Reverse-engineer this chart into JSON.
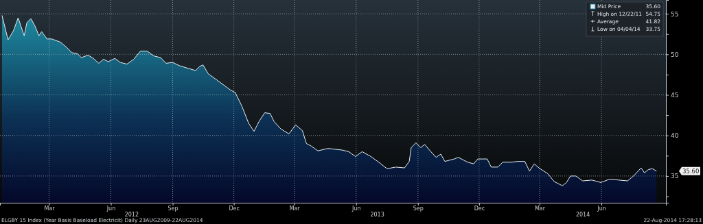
{
  "chart_data": {
    "type": "area",
    "xlim": [
      "2011-12-19",
      "2014-09-05"
    ],
    "ylim": [
      31.7,
      56.7
    ],
    "xticks": [
      {
        "value": "2012-03-01",
        "label": "Mar"
      },
      {
        "value": "2012-06-01",
        "label": "Jun"
      },
      {
        "value": "2012-09-01",
        "label": "Sep"
      },
      {
        "value": "2012-12-01",
        "label": "Dec"
      },
      {
        "value": "2013-03-01",
        "label": "Mar"
      },
      {
        "value": "2013-06-01",
        "label": "Jun"
      },
      {
        "value": "2013-09-01",
        "label": "Sep"
      },
      {
        "value": "2013-12-01",
        "label": "Dec"
      },
      {
        "value": "2014-03-01",
        "label": "Mar"
      },
      {
        "value": "2014-06-01",
        "label": "Jun"
      }
    ],
    "yticks": [
      {
        "value": 32.5,
        "label": null
      },
      35,
      {
        "value": 37.5,
        "label": null
      },
      40,
      {
        "value": 42.5,
        "label": null
      },
      45,
      {
        "value": 47.5,
        "label": null
      },
      50,
      {
        "value": 52.5,
        "label": null
      },
      55
    ],
    "grid": true,
    "legend": "top right",
    "x": [
      "2011-12-22",
      "2011-12-31",
      "2012-01-08",
      "2012-01-15",
      "2012-01-24",
      "2012-01-28",
      "2012-02-03",
      "2012-02-09",
      "2012-02-15",
      "2012-02-19",
      "2012-02-27",
      "2012-03-05",
      "2012-03-18",
      "2012-03-28",
      "2012-04-04",
      "2012-04-12",
      "2012-04-18",
      "2012-04-28",
      "2012-05-06",
      "2012-05-14",
      "2012-05-21",
      "2012-05-28",
      "2012-06-07",
      "2012-06-15",
      "2012-06-25",
      "2012-07-05",
      "2012-07-15",
      "2012-07-25",
      "2012-08-04",
      "2012-08-14",
      "2012-08-22",
      "2012-09-01",
      "2012-09-11",
      "2012-09-23",
      "2012-10-05",
      "2012-10-11",
      "2012-10-16",
      "2012-10-24",
      "2012-11-03",
      "2012-11-13",
      "2012-11-26",
      "2012-12-03",
      "2012-12-13",
      "2012-12-23",
      "2012-12-31",
      "2013-01-08",
      "2013-01-16",
      "2013-01-24",
      "2013-01-30",
      "2013-02-09",
      "2013-02-21",
      "2013-03-03",
      "2013-03-13",
      "2013-03-19",
      "2013-03-26",
      "2013-04-05",
      "2013-04-20",
      "2013-04-30",
      "2013-05-11",
      "2013-05-21",
      "2013-05-31",
      "2013-06-10",
      "2013-06-23",
      "2013-07-03",
      "2013-07-17",
      "2013-07-30",
      "2013-08-12",
      "2013-08-19",
      "2013-08-22",
      "2013-08-29",
      "2013-09-05",
      "2013-09-11",
      "2013-09-18",
      "2013-09-28",
      "2013-10-05",
      "2013-10-11",
      "2013-10-25",
      "2013-10-31",
      "2013-11-14",
      "2013-11-23",
      "2013-11-29",
      "2013-12-13",
      "2013-12-19",
      "2013-12-29",
      "2014-01-05",
      "2014-01-18",
      "2014-01-28",
      "2014-02-07",
      "2014-02-14",
      "2014-02-21",
      "2014-02-28",
      "2014-03-13",
      "2014-03-23",
      "2014-04-04",
      "2014-04-10",
      "2014-04-16",
      "2014-04-24",
      "2014-05-04",
      "2014-05-18",
      "2014-05-31",
      "2014-06-13",
      "2014-06-27",
      "2014-07-10",
      "2014-07-20",
      "2014-07-30",
      "2014-08-04",
      "2014-08-10",
      "2014-08-16",
      "2014-08-22"
    ],
    "series": [
      {
        "name": "Mid Price",
        "color": "#1e8aa0",
        "values": [
          54.8,
          51.8,
          52.9,
          54.5,
          52.3,
          53.9,
          54.4,
          53.5,
          52.3,
          52.8,
          51.9,
          51.9,
          51.5,
          50.8,
          50.2,
          50.1,
          49.6,
          49.9,
          49.5,
          48.9,
          49.4,
          49.1,
          49.5,
          49.0,
          48.8,
          49.4,
          50.4,
          50.4,
          49.8,
          49.6,
          48.9,
          49.0,
          48.6,
          48.3,
          48.0,
          48.5,
          48.7,
          47.6,
          47.0,
          46.4,
          45.6,
          45.3,
          43.6,
          41.5,
          40.5,
          41.8,
          42.8,
          42.7,
          41.7,
          40.8,
          40.2,
          41.3,
          40.6,
          39.0,
          38.7,
          38.1,
          38.4,
          38.3,
          38.2,
          38.0,
          37.4,
          38.0,
          37.4,
          36.8,
          35.9,
          36.1,
          36.0,
          36.8,
          38.5,
          39.1,
          38.5,
          38.9,
          38.2,
          37.3,
          37.7,
          36.8,
          37.1,
          37.3,
          36.7,
          36.5,
          37.1,
          37.1,
          36.1,
          36.1,
          36.7,
          36.7,
          36.8,
          36.8,
          35.6,
          36.5,
          36.0,
          35.3,
          34.3,
          33.8,
          34.2,
          35.0,
          35.0,
          34.4,
          34.5,
          34.2,
          34.6,
          34.5,
          34.4,
          35.1,
          36.0,
          35.4,
          35.8,
          35.9,
          35.6
        ]
      }
    ],
    "annotations": [
      "35.60",
      "High on 12/22/11 54.75",
      "Average 41.82",
      "Low on 04/04/14 33.75",
      "2012",
      "2013",
      "2014",
      "ELGBY 15 Index (Year Basis Baseload Electricit)  Daily 23AUG2009-22AUG2014",
      "22-Aug-2014 17:28:13"
    ]
  }
}
